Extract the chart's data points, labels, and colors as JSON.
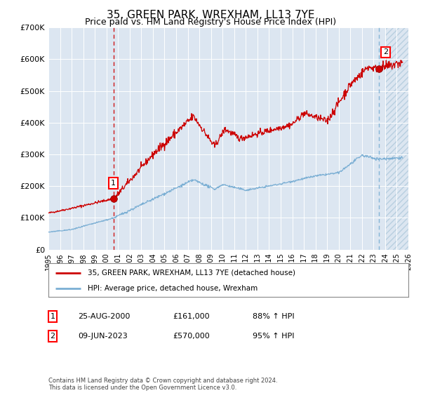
{
  "title": "35, GREEN PARK, WREXHAM, LL13 7YE",
  "subtitle": "Price paid vs. HM Land Registry's House Price Index (HPI)",
  "title_fontsize": 11,
  "subtitle_fontsize": 9,
  "background_color": "#ffffff",
  "plot_bg_color": "#dce6f1",
  "hatch_color": "#b8cfe0",
  "red_line_color": "#cc0000",
  "blue_line_color": "#7bafd4",
  "x_start_year": 1995,
  "x_end_year": 2026,
  "y_min": 0,
  "y_max": 700000,
  "y_ticks": [
    0,
    100000,
    200000,
    300000,
    400000,
    500000,
    600000,
    700000
  ],
  "y_tick_labels": [
    "£0",
    "£100K",
    "£200K",
    "£300K",
    "£400K",
    "£500K",
    "£600K",
    "£700K"
  ],
  "sale1_year": 2000.65,
  "sale1_price": 161000,
  "sale1_label": "1",
  "sale1_date": "25-AUG-2000",
  "sale1_price_str": "£161,000",
  "sale1_hpi": "88% ↑ HPI",
  "sale2_year": 2023.44,
  "sale2_price": 570000,
  "sale2_label": "2",
  "sale2_date": "09-JUN-2023",
  "sale2_price_str": "£570,000",
  "sale2_hpi": "95% ↑ HPI",
  "legend_line1": "35, GREEN PARK, WREXHAM, LL13 7YE (detached house)",
  "legend_line2": "HPI: Average price, detached house, Wrexham",
  "footer": "Contains HM Land Registry data © Crown copyright and database right 2024.\nThis data is licensed under the Open Government Licence v3.0."
}
